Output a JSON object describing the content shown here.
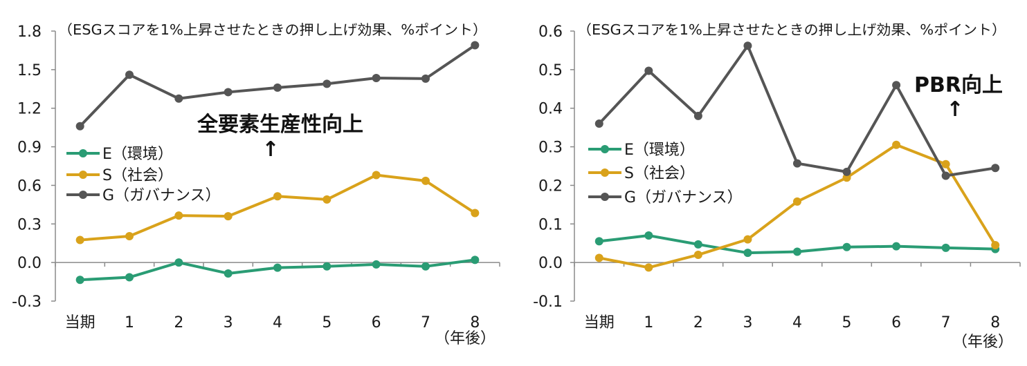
{
  "chart_data": [
    {
      "type": "line",
      "title": "",
      "note": "（ESGスコアを1%上昇させたときの押し上げ効果、%ポイント）",
      "categories": [
        "当期",
        "1",
        "2",
        "3",
        "4",
        "5",
        "6",
        "7",
        "8"
      ],
      "xlabel": "（年後）",
      "ylabel": "",
      "ylim": [
        -0.3,
        1.8
      ],
      "yticks": [
        "1.8",
        "1.5",
        "1.2",
        "0.9",
        "0.6",
        "0.3",
        "0.0",
        "-0.3"
      ],
      "ytick_values": [
        1.8,
        1.5,
        1.2,
        0.9,
        0.6,
        0.3,
        0.0,
        -0.3
      ],
      "series": [
        {
          "name": "E（環境）",
          "color": "#2a9c74",
          "values": [
            -0.135,
            -0.115,
            0.0,
            -0.085,
            -0.04,
            -0.03,
            -0.015,
            -0.03,
            0.02
          ]
        },
        {
          "name": "S（社会）",
          "color": "#d9a21b",
          "values": [
            0.175,
            0.205,
            0.365,
            0.36,
            0.515,
            0.49,
            0.68,
            0.635,
            0.385
          ]
        },
        {
          "name": "G（ガバナンス）",
          "color": "#555555",
          "values": [
            1.06,
            1.46,
            1.275,
            1.325,
            1.36,
            1.39,
            1.435,
            1.43,
            1.69
          ]
        }
      ],
      "legend": "left-middle",
      "annotation": {
        "text": "全要素生産性向上",
        "arrow": "↑"
      }
    },
    {
      "type": "line",
      "title": "",
      "note": "（ESGスコアを1%上昇させたときの押し上げ効果、%ポイント）",
      "categories": [
        "当期",
        "1",
        "2",
        "3",
        "4",
        "5",
        "6",
        "7",
        "8"
      ],
      "xlabel": "（年後）",
      "ylabel": "",
      "ylim": [
        -0.1,
        0.6
      ],
      "yticks": [
        "0.6",
        "0.5",
        "0.4",
        "0.3",
        "0.2",
        "0.1",
        "0.0",
        "-0.1"
      ],
      "ytick_values": [
        0.6,
        0.5,
        0.4,
        0.3,
        0.2,
        0.1,
        0.0,
        -0.1
      ],
      "series": [
        {
          "name": "E（環境）",
          "color": "#2a9c74",
          "values": [
            0.055,
            0.07,
            0.047,
            0.025,
            0.028,
            0.04,
            0.042,
            0.038,
            0.035
          ]
        },
        {
          "name": "S（社会）",
          "color": "#d9a21b",
          "values": [
            0.012,
            -0.013,
            0.02,
            0.06,
            0.158,
            0.22,
            0.305,
            0.255,
            0.045
          ]
        },
        {
          "name": "G（ガバナンス）",
          "color": "#555555",
          "values": [
            0.36,
            0.497,
            0.38,
            0.562,
            0.257,
            0.235,
            0.46,
            0.225,
            0.245
          ]
        }
      ],
      "legend": "left-middle",
      "annotation": {
        "text": "PBR向上",
        "arrow": "↑"
      }
    }
  ]
}
